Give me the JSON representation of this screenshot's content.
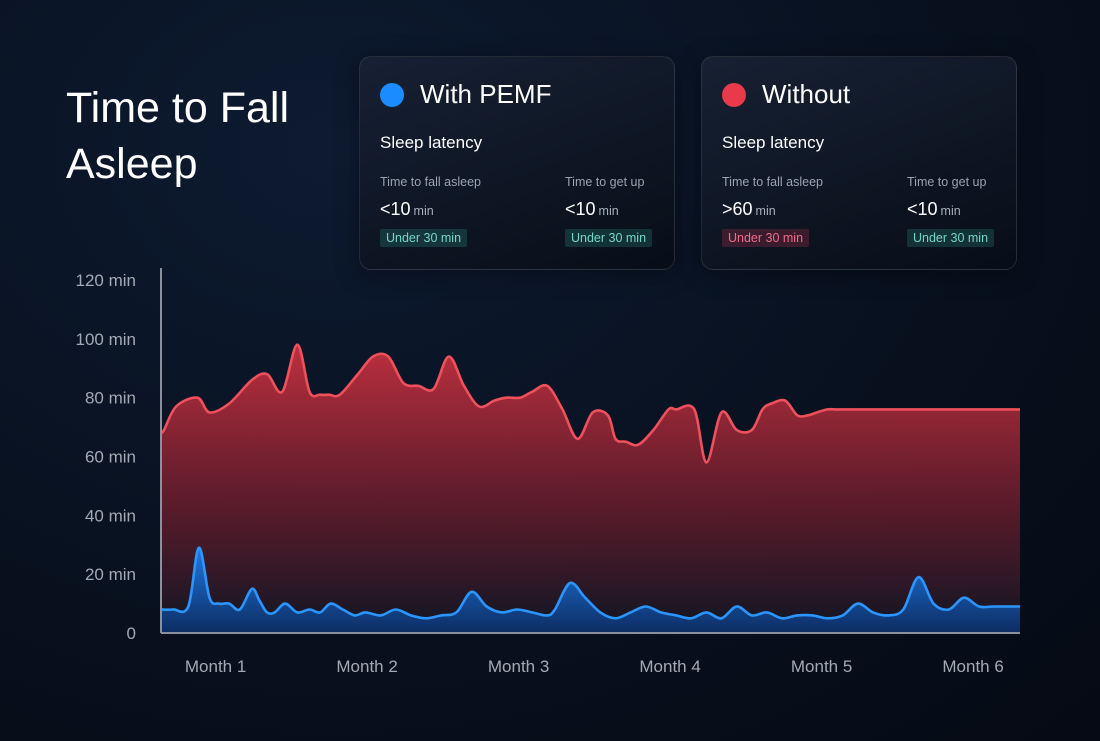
{
  "title": "Time to Fall Asleep",
  "legend_cards": [
    {
      "series": "With PEMF",
      "color": "#1a8cff",
      "subtitle": "Sleep latency",
      "metrics": [
        {
          "label": "Time to fall asleep",
          "value": "<10",
          "unit": "min",
          "badge": "Under 30 min",
          "badge_status": "ok"
        },
        {
          "label": "Time to get up",
          "value": "<10",
          "unit": "min",
          "badge": "Under 30 min",
          "badge_status": "ok"
        }
      ]
    },
    {
      "series": "Without",
      "color": "#e83a4a",
      "subtitle": "Sleep latency",
      "metrics": [
        {
          "label": "Time to fall asleep",
          "value": ">60",
          "unit": "min",
          "badge": "Under 30 min",
          "badge_status": "bad"
        },
        {
          "label": "Time to get up",
          "value": "<10",
          "unit": "min",
          "badge": "Under 30 min",
          "badge_status": "ok"
        }
      ]
    }
  ],
  "chart_data": {
    "type": "area",
    "title": "Time to Fall Asleep",
    "xlabel": "",
    "ylabel": "",
    "ylim": [
      0,
      120
    ],
    "xlim": [
      0.6,
      6.27
    ],
    "yticks": [
      0,
      20,
      40,
      60,
      80,
      100,
      120
    ],
    "ytick_labels": [
      "0",
      "20 min",
      "40 min",
      "60 min",
      "80 min",
      "100 min",
      "120 min"
    ],
    "xticks": [
      1,
      2,
      3,
      4,
      5,
      6
    ],
    "xtick_labels": [
      "Month 1",
      "Month 2",
      "Month 3",
      "Month 4",
      "Month 5",
      "Month 6"
    ],
    "grid": false,
    "series": [
      {
        "name": "Without",
        "color": "#e83a4a",
        "x": [
          0.6,
          0.62,
          0.7,
          0.84,
          0.92,
          1.05,
          1.2,
          1.3,
          1.4,
          1.5,
          1.58,
          1.65,
          1.71,
          1.78,
          1.9,
          2.0,
          2.1,
          2.2,
          2.3,
          2.4,
          2.5,
          2.6,
          2.7,
          2.8,
          2.88,
          2.97,
          3.05,
          3.15,
          3.25,
          3.35,
          3.45,
          3.55,
          3.6,
          3.67,
          3.75,
          3.85,
          3.95,
          4.0,
          4.12,
          4.2,
          4.3,
          4.4,
          4.5,
          4.57,
          4.63,
          4.72,
          4.8,
          4.87,
          4.93,
          5.0,
          5.06,
          5.12,
          5.2,
          5.3,
          5.45,
          5.52,
          5.58,
          5.65,
          5.75,
          5.85,
          5.94,
          6.05,
          6.15,
          6.2,
          6.27
        ],
        "values": [
          68,
          69,
          77,
          80,
          75,
          78,
          86,
          88,
          82,
          98,
          82,
          81,
          81,
          81,
          88,
          94,
          94,
          85,
          84,
          83,
          94,
          84,
          77,
          79,
          80,
          80,
          82,
          84,
          76,
          66,
          75,
          74,
          66,
          65,
          64,
          69,
          76,
          76,
          76,
          58,
          75,
          69,
          69,
          76,
          78,
          79,
          74,
          74,
          75,
          76,
          76,
          76,
          76,
          76,
          76,
          76,
          76,
          76,
          76,
          76,
          76,
          76,
          76,
          76,
          76
        ]
      },
      {
        "name": "With PEMF",
        "color": "#1a8cff",
        "x": [
          0.6,
          0.68,
          0.78,
          0.85,
          0.92,
          0.98,
          1.05,
          1.12,
          1.2,
          1.25,
          1.3,
          1.35,
          1.42,
          1.5,
          1.58,
          1.65,
          1.72,
          1.8,
          1.88,
          1.95,
          2.05,
          2.15,
          2.25,
          2.35,
          2.45,
          2.55,
          2.65,
          2.75,
          2.85,
          2.95,
          3.05,
          3.15,
          3.2,
          3.3,
          3.4,
          3.5,
          3.6,
          3.7,
          3.8,
          3.9,
          4.0,
          4.1,
          4.2,
          4.3,
          4.4,
          4.5,
          4.6,
          4.7,
          4.8,
          4.9,
          5.0,
          5.1,
          5.2,
          5.3,
          5.4,
          5.5,
          5.6,
          5.7,
          5.8,
          5.9,
          6.0,
          6.1,
          6.27
        ],
        "values": [
          8,
          8,
          9,
          29,
          12,
          10,
          10,
          8,
          15,
          11,
          7,
          7,
          10,
          7,
          8,
          7,
          10,
          8,
          6,
          7,
          6,
          8,
          6,
          5,
          6,
          7,
          14,
          9,
          7,
          8,
          7,
          6,
          8,
          17,
          12,
          7,
          5,
          7,
          9,
          7,
          6,
          5,
          7,
          5,
          9,
          6,
          7,
          5,
          6,
          6,
          5,
          6,
          10,
          7,
          6,
          8,
          19,
          10,
          8,
          12,
          9,
          9,
          9
        ]
      }
    ]
  }
}
